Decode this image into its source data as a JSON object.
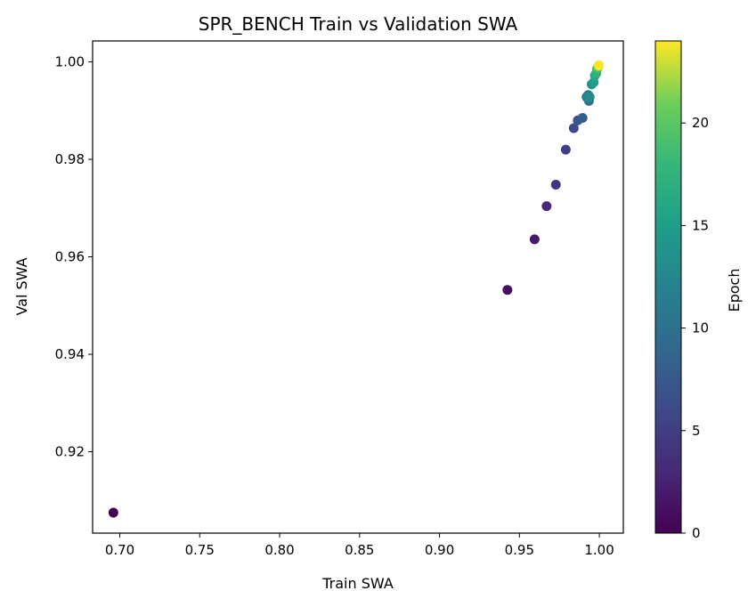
{
  "chart_data": {
    "type": "scatter",
    "title": "SPR_BENCH Train vs Validation SWA",
    "xlabel": "Train SWA",
    "ylabel": "Val SWA",
    "xlim": [
      0.683,
      1.015
    ],
    "ylim": [
      0.9033,
      1.0043
    ],
    "x_ticks": [
      "0.70",
      "0.75",
      "0.80",
      "0.85",
      "0.90",
      "0.95",
      "1.00"
    ],
    "y_ticks": [
      "0.92",
      "0.94",
      "0.96",
      "0.98",
      "1.00"
    ],
    "grid": false,
    "colorbar": {
      "label": "Epoch",
      "range": [
        0,
        24
      ],
      "ticks": [
        "0",
        "5",
        "10",
        "15",
        "20"
      ],
      "colormap": "viridis"
    },
    "points": [
      {
        "epoch": 0,
        "x": 0.696,
        "y": 0.9075
      },
      {
        "epoch": 1,
        "x": 0.9425,
        "y": 0.9532
      },
      {
        "epoch": 2,
        "x": 0.9595,
        "y": 0.9636
      },
      {
        "epoch": 3,
        "x": 0.967,
        "y": 0.9704
      },
      {
        "epoch": 4,
        "x": 0.9728,
        "y": 0.9748
      },
      {
        "epoch": 5,
        "x": 0.979,
        "y": 0.982
      },
      {
        "epoch": 6,
        "x": 0.984,
        "y": 0.9864
      },
      {
        "epoch": 7,
        "x": 0.9865,
        "y": 0.988
      },
      {
        "epoch": 8,
        "x": 0.9895,
        "y": 0.9885
      },
      {
        "epoch": 9,
        "x": 0.992,
        "y": 0.9928
      },
      {
        "epoch": 10,
        "x": 0.9935,
        "y": 0.992
      },
      {
        "epoch": 11,
        "x": 0.993,
        "y": 0.9932
      },
      {
        "epoch": 12,
        "x": 0.9925,
        "y": 0.9926
      },
      {
        "epoch": 13,
        "x": 0.994,
        "y": 0.9928
      },
      {
        "epoch": 14,
        "x": 0.9952,
        "y": 0.9954
      },
      {
        "epoch": 15,
        "x": 0.9965,
        "y": 0.9958
      },
      {
        "epoch": 16,
        "x": 0.9972,
        "y": 0.9972
      },
      {
        "epoch": 17,
        "x": 0.998,
        "y": 0.9976
      },
      {
        "epoch": 18,
        "x": 0.9985,
        "y": 0.9985
      },
      {
        "epoch": 19,
        "x": 0.999,
        "y": 0.9988
      },
      {
        "epoch": 20,
        "x": 0.9993,
        "y": 0.999
      },
      {
        "epoch": 21,
        "x": 0.9995,
        "y": 0.9991
      },
      {
        "epoch": 22,
        "x": 0.9996,
        "y": 0.9992
      },
      {
        "epoch": 23,
        "x": 0.9997,
        "y": 0.9993
      },
      {
        "epoch": 24,
        "x": 0.9998,
        "y": 0.9993
      }
    ]
  }
}
